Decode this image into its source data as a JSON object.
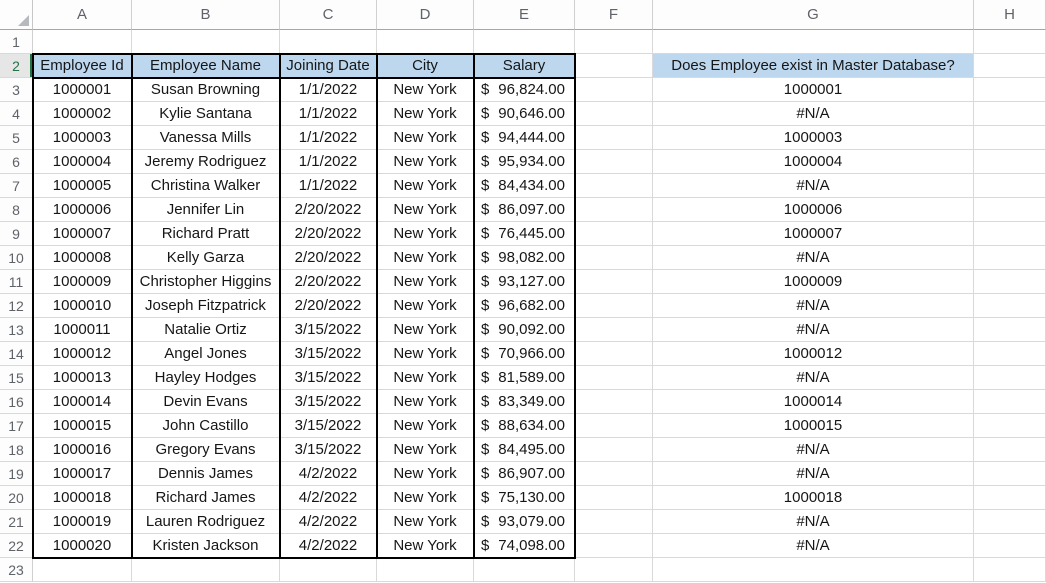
{
  "sheet": {
    "column_letters": [
      "A",
      "B",
      "C",
      "D",
      "E",
      "F",
      "G",
      "H"
    ],
    "row_numbers": [
      "1",
      "2",
      "3",
      "4",
      "5",
      "6",
      "7",
      "8",
      "9",
      "10",
      "11",
      "12",
      "13",
      "14",
      "15",
      "16",
      "17",
      "18",
      "19",
      "20",
      "21",
      "22",
      "23"
    ],
    "active_row": "2",
    "table_headers": [
      "Employee Id",
      "Employee Name",
      "Joining Date",
      "City",
      "Salary"
    ],
    "lookup_header": "Does Employee exist in Master Database?",
    "rows": [
      {
        "id": "1000001",
        "name": "Susan Browning",
        "joining_date": "1/1/2022",
        "city": "New York",
        "salary": {
          "currency": "$",
          "amount": "96,824.00"
        },
        "lookup": "1000001",
        "error": false
      },
      {
        "id": "1000002",
        "name": "Kylie Santana",
        "joining_date": "1/1/2022",
        "city": "New York",
        "salary": {
          "currency": "$",
          "amount": "90,646.00"
        },
        "lookup": "#N/A",
        "error": true
      },
      {
        "id": "1000003",
        "name": "Vanessa Mills",
        "joining_date": "1/1/2022",
        "city": "New York",
        "salary": {
          "currency": "$",
          "amount": "94,444.00"
        },
        "lookup": "1000003",
        "error": false
      },
      {
        "id": "1000004",
        "name": "Jeremy Rodriguez",
        "joining_date": "1/1/2022",
        "city": "New York",
        "salary": {
          "currency": "$",
          "amount": "95,934.00"
        },
        "lookup": "1000004",
        "error": false
      },
      {
        "id": "1000005",
        "name": "Christina Walker",
        "joining_date": "1/1/2022",
        "city": "New York",
        "salary": {
          "currency": "$",
          "amount": "84,434.00"
        },
        "lookup": "#N/A",
        "error": true
      },
      {
        "id": "1000006",
        "name": "Jennifer Lin",
        "joining_date": "2/20/2022",
        "city": "New York",
        "salary": {
          "currency": "$",
          "amount": "86,097.00"
        },
        "lookup": "1000006",
        "error": false
      },
      {
        "id": "1000007",
        "name": "Richard Pratt",
        "joining_date": "2/20/2022",
        "city": "New York",
        "salary": {
          "currency": "$",
          "amount": "76,445.00"
        },
        "lookup": "1000007",
        "error": false
      },
      {
        "id": "1000008",
        "name": "Kelly Garza",
        "joining_date": "2/20/2022",
        "city": "New York",
        "salary": {
          "currency": "$",
          "amount": "98,082.00"
        },
        "lookup": "#N/A",
        "error": true
      },
      {
        "id": "1000009",
        "name": "Christopher Higgins",
        "joining_date": "2/20/2022",
        "city": "New York",
        "salary": {
          "currency": "$",
          "amount": "93,127.00"
        },
        "lookup": "1000009",
        "error": false
      },
      {
        "id": "1000010",
        "name": "Joseph Fitzpatrick",
        "joining_date": "2/20/2022",
        "city": "New York",
        "salary": {
          "currency": "$",
          "amount": "96,682.00"
        },
        "lookup": "#N/A",
        "error": true
      },
      {
        "id": "1000011",
        "name": "Natalie Ortiz",
        "joining_date": "3/15/2022",
        "city": "New York",
        "salary": {
          "currency": "$",
          "amount": "90,092.00"
        },
        "lookup": "#N/A",
        "error": true
      },
      {
        "id": "1000012",
        "name": "Angel Jones",
        "joining_date": "3/15/2022",
        "city": "New York",
        "salary": {
          "currency": "$",
          "amount": "70,966.00"
        },
        "lookup": "1000012",
        "error": false
      },
      {
        "id": "1000013",
        "name": "Hayley Hodges",
        "joining_date": "3/15/2022",
        "city": "New York",
        "salary": {
          "currency": "$",
          "amount": "81,589.00"
        },
        "lookup": "#N/A",
        "error": true
      },
      {
        "id": "1000014",
        "name": "Devin Evans",
        "joining_date": "3/15/2022",
        "city": "New York",
        "salary": {
          "currency": "$",
          "amount": "83,349.00"
        },
        "lookup": "1000014",
        "error": false
      },
      {
        "id": "1000015",
        "name": "John Castillo",
        "joining_date": "3/15/2022",
        "city": "New York",
        "salary": {
          "currency": "$",
          "amount": "88,634.00"
        },
        "lookup": "1000015",
        "error": false
      },
      {
        "id": "1000016",
        "name": "Gregory Evans",
        "joining_date": "3/15/2022",
        "city": "New York",
        "salary": {
          "currency": "$",
          "amount": "84,495.00"
        },
        "lookup": "#N/A",
        "error": true
      },
      {
        "id": "1000017",
        "name": "Dennis James",
        "joining_date": "4/2/2022",
        "city": "New York",
        "salary": {
          "currency": "$",
          "amount": "86,907.00"
        },
        "lookup": "#N/A",
        "error": true
      },
      {
        "id": "1000018",
        "name": "Richard James",
        "joining_date": "4/2/2022",
        "city": "New York",
        "salary": {
          "currency": "$",
          "amount": "75,130.00"
        },
        "lookup": "1000018",
        "error": false
      },
      {
        "id": "1000019",
        "name": "Lauren Rodriguez",
        "joining_date": "4/2/2022",
        "city": "New York",
        "salary": {
          "currency": "$",
          "amount": "93,079.00"
        },
        "lookup": "#N/A",
        "error": true
      },
      {
        "id": "1000020",
        "name": "Kristen Jackson",
        "joining_date": "4/2/2022",
        "city": "New York",
        "salary": {
          "currency": "$",
          "amount": "74,098.00"
        },
        "lookup": "#N/A",
        "error": true
      }
    ],
    "colors": {
      "header_fill": "#BDD7EE",
      "error_indicator": "#1E7245",
      "active_row_accent": "#217346",
      "table_border": "#000000",
      "gridline": "#D9D9D9"
    }
  }
}
